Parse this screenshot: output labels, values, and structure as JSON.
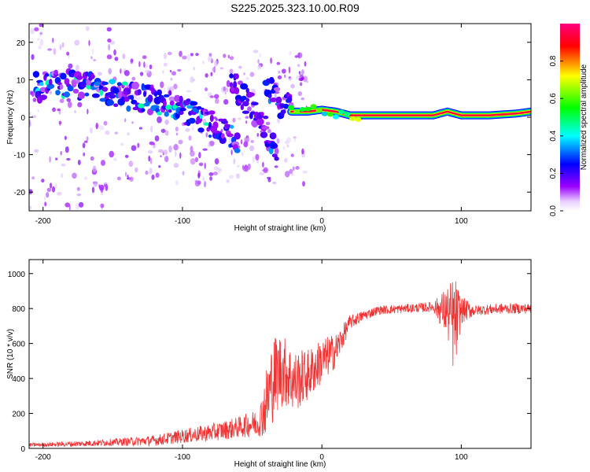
{
  "title": "S225.2025.323.10.00.R09",
  "chart_data": [
    {
      "type": "heatmap",
      "xlabel": "Height of straight line (km)",
      "ylabel": "Frequency (Hz)",
      "xlim": [
        -210,
        150
      ],
      "ylim": [
        -25,
        25
      ],
      "xticks": [
        -200,
        -100,
        0,
        100
      ],
      "yticks": [
        -20,
        -10,
        0,
        10,
        20
      ],
      "grid": false,
      "colorbar": {
        "label": "Normalized spectral amplitude",
        "range": [
          0.0,
          1.0
        ],
        "ticks": [
          "0.0",
          "0.2",
          "0.4",
          "0.6",
          "0.8"
        ],
        "colormap": [
          "#ffffff",
          "#9b00ff",
          "#0000ff",
          "#00ffff",
          "#00ff00",
          "#ffff00",
          "#ff0000"
        ]
      },
      "ridges": [
        {
          "x": [
            -205,
            -185,
            -165,
            -145,
            -125,
            -105,
            -85,
            -70,
            -60
          ],
          "freq": [
            8,
            9,
            8,
            6,
            5,
            3,
            -1,
            -4,
            -7
          ],
          "amp": 0.25
        },
        {
          "x": [
            -65,
            -55,
            -45,
            -38,
            -32
          ],
          "freq": [
            9,
            5,
            0,
            -5,
            -12
          ],
          "amp": 0.2
        },
        {
          "x": [
            -40,
            -35,
            -28,
            -22
          ],
          "freq": [
            9,
            6,
            3,
            2
          ],
          "amp": 0.2
        },
        {
          "x": [
            -22,
            -10,
            0,
            10,
            20,
            40,
            60,
            80,
            90,
            100,
            120,
            140,
            150
          ],
          "freq": [
            1.5,
            1.5,
            2,
            1.5,
            0.5,
            0.5,
            0.5,
            0.5,
            1.5,
            0.5,
            0.5,
            1,
            1.5
          ],
          "amp": 0.95
        }
      ]
    },
    {
      "type": "line",
      "xlabel": "Height of straight line (km)",
      "ylabel": "SNR (10 * v/v)",
      "xlim": [
        -210,
        150
      ],
      "ylim": [
        0,
        1080
      ],
      "xticks": [
        -200,
        -100,
        0,
        100
      ],
      "yticks": [
        0,
        200,
        400,
        600,
        800,
        1000
      ],
      "grid": false,
      "series": [
        {
          "color": "#ee3333",
          "x": [
            -210,
            -180,
            -150,
            -120,
            -100,
            -80,
            -60,
            -45,
            -40,
            -35,
            -30,
            -25,
            -20,
            -10,
            0,
            10,
            20,
            30,
            40,
            60,
            80,
            90,
            95,
            100,
            110,
            130,
            150
          ],
          "y": [
            20,
            25,
            35,
            45,
            70,
            90,
            120,
            150,
            260,
            400,
            450,
            430,
            380,
            420,
            500,
            560,
            720,
            760,
            790,
            800,
            810,
            780,
            700,
            790,
            790,
            800,
            800
          ],
          "noise": [
            10,
            15,
            20,
            30,
            40,
            50,
            60,
            80,
            200,
            250,
            220,
            200,
            180,
            150,
            130,
            100,
            40,
            30,
            25,
            25,
            30,
            150,
            300,
            80,
            30,
            30,
            30
          ]
        }
      ]
    }
  ]
}
